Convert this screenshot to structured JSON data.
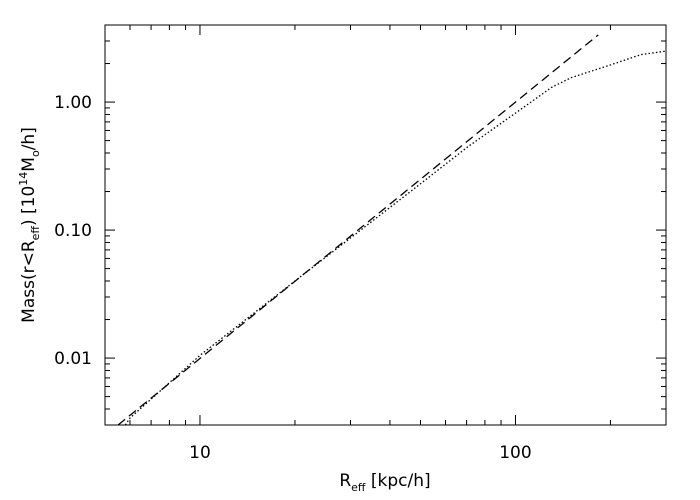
{
  "chart_data": {
    "type": "line",
    "xlabel": [
      "R",
      "eff",
      " [kpc/h]"
    ],
    "ylabel": [
      "Mass(r<R",
      "eff",
      ") [10",
      "14",
      "M",
      "o",
      "/h]"
    ],
    "xscale": "log",
    "yscale": "log",
    "xlim": [
      5,
      300
    ],
    "ylim": [
      0.003,
      4
    ],
    "xticks": [
      10,
      100
    ],
    "yticks": [
      {
        "value": 0.01,
        "label": "0.01"
      },
      {
        "value": 0.1,
        "label": "0.10"
      },
      {
        "value": 1,
        "label": "1.00"
      }
    ],
    "xminor_ticks": [
      6,
      7,
      8,
      9,
      20,
      30,
      40,
      50,
      60,
      70,
      80,
      90,
      200
    ],
    "yminor_ticks": [
      0.004,
      0.005,
      0.006,
      0.007,
      0.008,
      0.009,
      0.02,
      0.03,
      0.04,
      0.05,
      0.06,
      0.07,
      0.08,
      0.09,
      0.2,
      0.3,
      0.4,
      0.5,
      0.6,
      0.7,
      0.8,
      0.9,
      2,
      3
    ],
    "series": [
      {
        "style": "dashed",
        "color": "#000000",
        "x": [
          5.5,
          183
        ],
        "values": [
          0.003,
          3.35
        ]
      },
      {
        "style": "dotted",
        "color": "#000000",
        "x": [
          5.8,
          6,
          10,
          20,
          50,
          70,
          100,
          130,
          150,
          200,
          250,
          300
        ],
        "values": [
          0.003,
          0.0034,
          0.0105,
          0.04,
          0.23,
          0.44,
          0.82,
          1.3,
          1.55,
          1.95,
          2.35,
          2.5
        ]
      }
    ]
  }
}
